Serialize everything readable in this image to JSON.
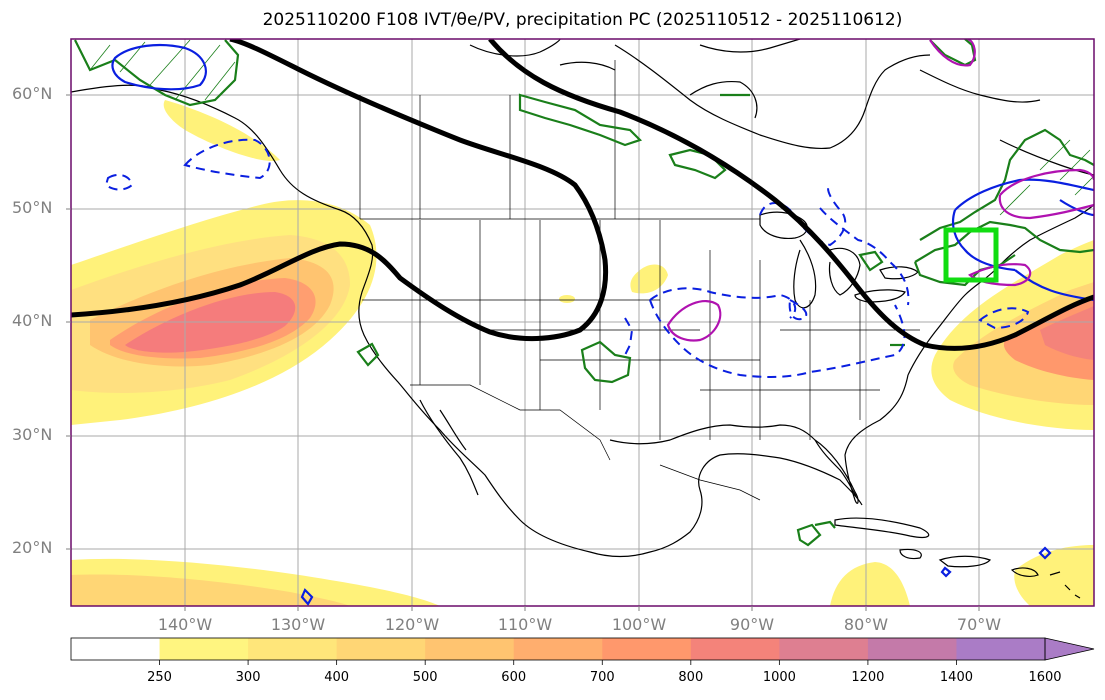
{
  "title": "2025110200 F108 IVT/θe/PV, precipitation PC (2025110512 - 2025110612)",
  "lat_labels": [
    "60°N",
    "50°N",
    "40°N",
    "30°N",
    "20°N"
  ],
  "lon_labels": [
    "140°W",
    "130°W",
    "120°W",
    "110°W",
    "100°W",
    "90°W",
    "80°W",
    "70°W"
  ],
  "colorbar": {
    "levels": [
      "250",
      "300",
      "400",
      "500",
      "600",
      "700",
      "800",
      "1000",
      "1200",
      "1400",
      "1600"
    ],
    "colors": [
      "#ffffff",
      "#fff580",
      "#ffe67a",
      "#ffd675",
      "#ffc470",
      "#ffae6e",
      "#ff986c",
      "#f4837a",
      "#de7f91",
      "#c47aa9",
      "#aa7cc6"
    ]
  },
  "colors": {
    "ivt_yellow": "#fff27a",
    "ivt_orange": "#ffb870",
    "ivt_red": "#f57c7c",
    "theta_e_line": "#000000",
    "pv_green": "#1a7f1a",
    "blue": "#0a1fe0",
    "magenta": "#b012b0",
    "box_green": "#11dd11",
    "border_purple": "#6a0a6a"
  }
}
